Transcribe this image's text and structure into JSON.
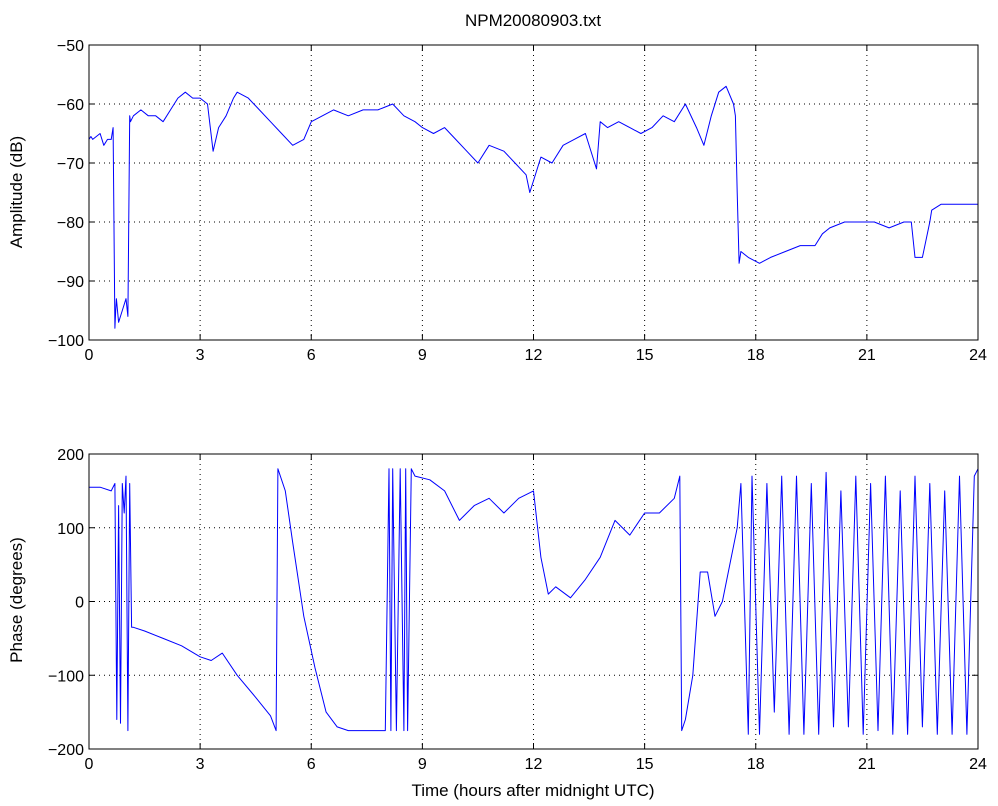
{
  "title": "NPM20080903.txt",
  "colors": {
    "series": "#0000ff",
    "axes": "#000000",
    "grid": "#000000",
    "background": "#ffffff"
  },
  "chart_data": [
    {
      "type": "line",
      "ylabel": "Amplitude (dB)",
      "xlabel": "",
      "xlim": [
        0,
        24
      ],
      "ylim": [
        -100,
        -50
      ],
      "xticks": [
        0,
        3,
        6,
        9,
        12,
        15,
        18,
        21,
        24
      ],
      "yticks": [
        -100,
        -90,
        -80,
        -70,
        -60,
        -50
      ],
      "grid": true,
      "series": [
        {
          "x": [
            0,
            0.05,
            0.1,
            0.3,
            0.4,
            0.5,
            0.6,
            0.65,
            0.7,
            0.72,
            0.74,
            0.8,
            0.9,
            1.0,
            1.05,
            1.1,
            1.12,
            1.2,
            1.4,
            1.6,
            1.8,
            2.0,
            2.2,
            2.4,
            2.6,
            2.8,
            3.0,
            3.2,
            3.35,
            3.5,
            3.7,
            3.9,
            4.0,
            4.3,
            4.6,
            4.9,
            5.2,
            5.5,
            5.8,
            6.0,
            6.3,
            6.6,
            7.0,
            7.4,
            7.8,
            8.2,
            8.5,
            8.8,
            9.0,
            9.3,
            9.6,
            9.9,
            10.2,
            10.5,
            10.8,
            11.2,
            11.5,
            11.8,
            11.9,
            12.2,
            12.5,
            12.8,
            13.1,
            13.4,
            13.7,
            13.8,
            14.0,
            14.3,
            14.6,
            14.9,
            15.2,
            15.5,
            15.8,
            16.1,
            16.4,
            16.6,
            16.8,
            17.0,
            17.2,
            17.4,
            17.45,
            17.5,
            17.55,
            17.6,
            17.8,
            18.1,
            18.4,
            18.8,
            19.2,
            19.6,
            19.8,
            20.0,
            20.4,
            20.8,
            21.2,
            21.6,
            22.0,
            22.2,
            22.3,
            22.5,
            22.7,
            22.75,
            23.0,
            23.3,
            23.6,
            24.0
          ],
          "y": [
            -66,
            -65.5,
            -66,
            -65,
            -67,
            -66,
            -66,
            -64,
            -98,
            -95,
            -93,
            -97,
            -95,
            -93,
            -96,
            -62,
            -63,
            -62,
            -61,
            -62,
            -62,
            -63,
            -61,
            -59,
            -58,
            -59,
            -59,
            -60,
            -68,
            -64,
            -62,
            -59,
            -58,
            -59,
            -61,
            -63,
            -65,
            -67,
            -66,
            -63,
            -62,
            -61,
            -62,
            -61,
            -61,
            -60,
            -62,
            -63,
            -64,
            -65,
            -64,
            -66,
            -68,
            -70,
            -67,
            -68,
            -70,
            -72,
            -75,
            -69,
            -70,
            -67,
            -66,
            -65,
            -71,
            -63,
            -64,
            -63,
            -64,
            -65,
            -64,
            -62,
            -63,
            -60,
            -64,
            -67,
            -62,
            -58,
            -57,
            -60,
            -62,
            -75,
            -87,
            -85,
            -86,
            -87,
            -86,
            -85,
            -84,
            -84,
            -82,
            -81,
            -80,
            -80,
            -80,
            -81,
            -80,
            -80,
            -86,
            -86,
            -80,
            -78,
            -77,
            -77,
            -77,
            -77
          ]
        }
      ]
    },
    {
      "type": "line",
      "ylabel": "Phase (degrees)",
      "xlabel": "Time (hours after midnight UTC)",
      "xlim": [
        0,
        24
      ],
      "ylim": [
        -200,
        200
      ],
      "xticks": [
        0,
        3,
        6,
        9,
        12,
        15,
        18,
        21,
        24
      ],
      "yticks": [
        -200,
        -100,
        0,
        100,
        200
      ],
      "grid": true,
      "series": [
        {
          "x": [
            0,
            0.3,
            0.6,
            0.7,
            0.75,
            0.8,
            0.85,
            0.9,
            0.95,
            1.0,
            1.05,
            1.1,
            1.15,
            1.2,
            1.5,
            2.0,
            2.5,
            3.0,
            3.3,
            3.6,
            4.0,
            4.5,
            4.9,
            5.05,
            5.1,
            5.3,
            5.5,
            5.8,
            6.1,
            6.4,
            6.7,
            7.0,
            7.5,
            8.0,
            8.1,
            8.15,
            8.2,
            8.3,
            8.4,
            8.5,
            8.55,
            8.6,
            8.7,
            8.8,
            9.2,
            9.6,
            10.0,
            10.4,
            10.8,
            11.2,
            11.6,
            12.0,
            12.2,
            12.4,
            12.6,
            13.0,
            13.4,
            13.8,
            14.2,
            14.6,
            15.0,
            15.4,
            15.8,
            15.95,
            16.0,
            16.1,
            16.3,
            16.5,
            16.7,
            16.9,
            17.1,
            17.3,
            17.5,
            17.6,
            17.8,
            17.9,
            18.1,
            18.3,
            18.5,
            18.7,
            18.9,
            19.1,
            19.3,
            19.5,
            19.7,
            19.9,
            20.1,
            20.3,
            20.5,
            20.7,
            20.9,
            21.1,
            21.3,
            21.5,
            21.7,
            21.9,
            22.1,
            22.3,
            22.5,
            22.7,
            22.9,
            23.1,
            23.3,
            23.5,
            23.7,
            23.9,
            24.0
          ],
          "y": [
            155,
            155,
            150,
            160,
            -160,
            130,
            -165,
            160,
            120,
            170,
            -175,
            160,
            -35,
            -35,
            -40,
            -50,
            -60,
            -75,
            -80,
            -70,
            -100,
            -130,
            -155,
            -175,
            180,
            150,
            80,
            -20,
            -90,
            -150,
            -170,
            -175,
            -175,
            -175,
            180,
            -175,
            180,
            -175,
            180,
            -175,
            180,
            -175,
            180,
            170,
            165,
            150,
            110,
            130,
            140,
            120,
            140,
            150,
            60,
            10,
            20,
            5,
            30,
            60,
            110,
            90,
            120,
            120,
            140,
            170,
            -175,
            -160,
            -100,
            40,
            40,
            -20,
            0,
            50,
            100,
            160,
            -180,
            170,
            -180,
            160,
            -150,
            170,
            -180,
            170,
            -180,
            160,
            -180,
            175,
            -170,
            150,
            -170,
            170,
            -180,
            160,
            -175,
            170,
            -180,
            150,
            -180,
            170,
            -170,
            160,
            -180,
            150,
            -180,
            170,
            -180,
            170,
            180
          ]
        }
      ]
    }
  ]
}
